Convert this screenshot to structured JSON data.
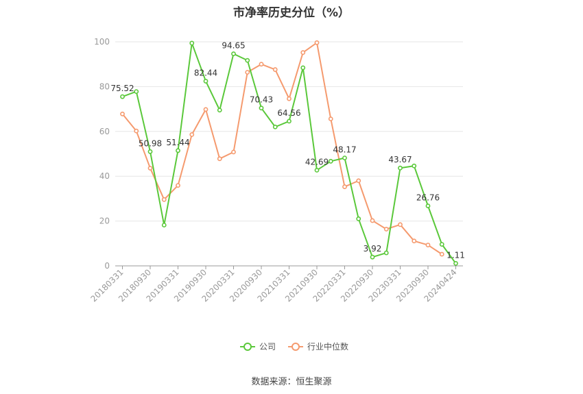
{
  "chart_data": {
    "type": "line",
    "title": "市净率历史分位（%）",
    "ylim": [
      0,
      100
    ],
    "y_ticks": [
      0,
      20,
      40,
      60,
      80,
      100
    ],
    "x_tick_labels": [
      "20180331",
      "20180930",
      "20190331",
      "20190930",
      "20200331",
      "20200930",
      "20210331",
      "20210930",
      "20220331",
      "20220930",
      "20230331",
      "20230930",
      "20240424"
    ],
    "grid": "horizontal",
    "legend_position": "bottom",
    "series": [
      {
        "name": "公司",
        "color": "#5ac83a",
        "values": [
          75.52,
          77.8,
          50.98,
          18.2,
          51.44,
          99.4,
          82.44,
          69.5,
          94.65,
          91.7,
          70.43,
          62.0,
          64.56,
          88.4,
          42.69,
          46.7,
          48.17,
          21.0,
          3.92,
          5.8,
          43.67,
          44.6,
          26.76,
          9.6,
          1.11
        ],
        "labels": [
          "75.52",
          "",
          "50.98",
          "",
          "51.44",
          "",
          "82.44",
          "",
          "94.65",
          "",
          "70.43",
          "",
          "64.56",
          "",
          "42.69",
          "",
          "48.17",
          "",
          "3.92",
          "",
          "43.67",
          "",
          "26.76",
          "",
          "1.11"
        ]
      },
      {
        "name": "行业中位数",
        "color": "#f59a6e",
        "values": [
          67.8,
          60.2,
          43.6,
          29.6,
          35.9,
          58.6,
          69.8,
          47.8,
          50.8,
          86.4,
          90.0,
          87.6,
          74.6,
          95.2,
          99.6,
          65.6,
          35.3,
          38.0,
          20.2,
          16.4,
          18.4,
          11.1,
          9.3,
          5.2
        ]
      }
    ]
  },
  "source": "数据来源：恒生聚源"
}
